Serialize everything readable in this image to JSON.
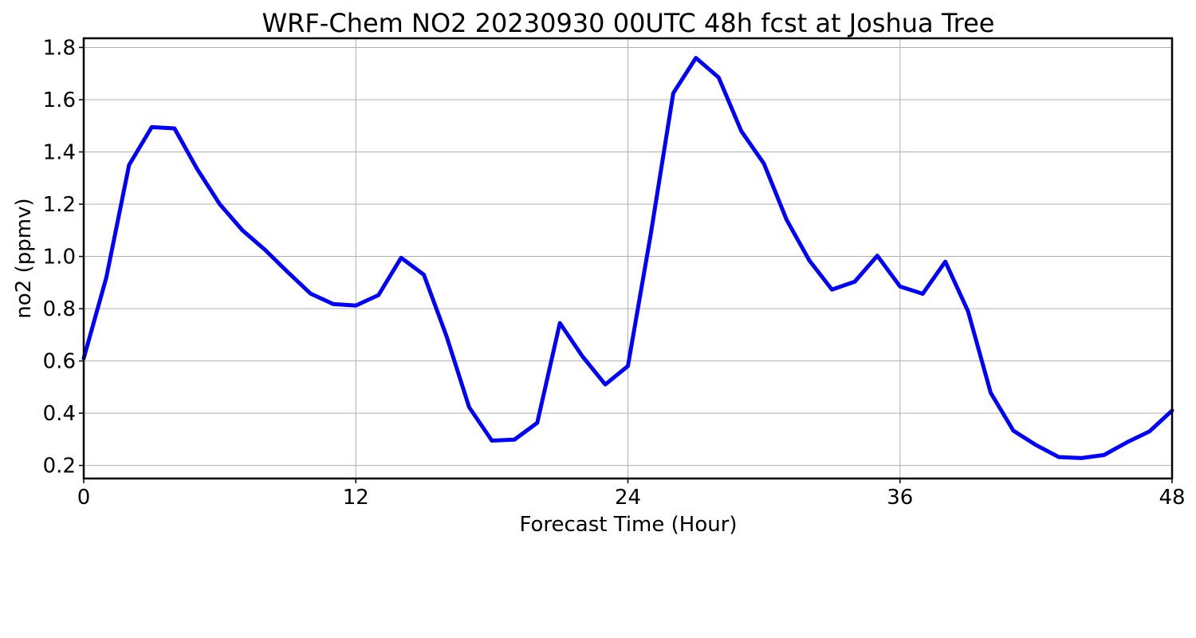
{
  "chart_data": {
    "type": "line",
    "title": "WRF-Chem NO2  20230930 00UTC 48h fcst at Joshua Tree",
    "xlabel": "Forecast Time (Hour)",
    "ylabel": "no2  (ppmv)",
    "xlim": [
      0,
      48
    ],
    "ylim": [
      0.15,
      1.835
    ],
    "xticks": [
      0,
      12,
      24,
      36,
      48
    ],
    "xtick_labels": [
      "0",
      "12",
      "24",
      "36",
      "48"
    ],
    "yticks": [
      0.2,
      0.4,
      0.6,
      0.8,
      1.0,
      1.2,
      1.4,
      1.6,
      1.8
    ],
    "ytick_labels": [
      "0.2",
      "0.4",
      "0.6",
      "0.8",
      "1.0",
      "1.2",
      "1.4",
      "1.6",
      "1.8"
    ],
    "grid": true,
    "line_color": "#0000ff",
    "series": [
      {
        "x": [
          0,
          1,
          2,
          3,
          4,
          5,
          6,
          7,
          8,
          9,
          10,
          11,
          12,
          13,
          14,
          15,
          16,
          17,
          18,
          19,
          20,
          21,
          22,
          23,
          24,
          25,
          26,
          27,
          28,
          29,
          30,
          31,
          32,
          33,
          34,
          35,
          36,
          37,
          38,
          39,
          40,
          41,
          42,
          43,
          44,
          45,
          46,
          47,
          48
        ],
        "values": [
          0.61,
          0.92,
          1.35,
          1.495,
          1.49,
          1.335,
          1.2,
          1.1,
          1.025,
          0.94,
          0.858,
          0.818,
          0.812,
          0.852,
          0.995,
          0.93,
          0.695,
          0.423,
          0.295,
          0.299,
          0.363,
          0.745,
          0.617,
          0.51,
          0.58,
          1.08,
          1.625,
          1.76,
          1.685,
          1.48,
          1.355,
          1.14,
          0.985,
          0.873,
          0.903,
          1.003,
          0.885,
          0.857,
          0.98,
          0.79,
          0.478,
          0.333,
          0.278,
          0.232,
          0.228,
          0.24,
          0.288,
          0.33,
          0.41
        ]
      }
    ]
  }
}
